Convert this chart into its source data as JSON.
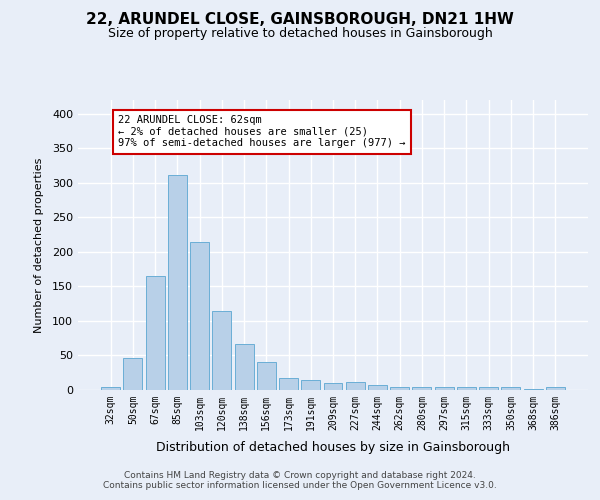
{
  "title": "22, ARUNDEL CLOSE, GAINSBOROUGH, DN21 1HW",
  "subtitle": "Size of property relative to detached houses in Gainsborough",
  "xlabel": "Distribution of detached houses by size in Gainsborough",
  "ylabel": "Number of detached properties",
  "footer_line1": "Contains HM Land Registry data © Crown copyright and database right 2024.",
  "footer_line2": "Contains public sector information licensed under the Open Government Licence v3.0.",
  "annotation_title": "22 ARUNDEL CLOSE: 62sqm",
  "annotation_line2": "← 2% of detached houses are smaller (25)",
  "annotation_line3": "97% of semi-detached houses are larger (977) →",
  "bar_labels": [
    "32sqm",
    "50sqm",
    "67sqm",
    "85sqm",
    "103sqm",
    "120sqm",
    "138sqm",
    "156sqm",
    "173sqm",
    "191sqm",
    "209sqm",
    "227sqm",
    "244sqm",
    "262sqm",
    "280sqm",
    "297sqm",
    "315sqm",
    "333sqm",
    "350sqm",
    "368sqm",
    "386sqm"
  ],
  "bar_values": [
    5,
    47,
    165,
    312,
    215,
    115,
    67,
    40,
    17,
    15,
    10,
    11,
    7,
    5,
    4,
    4,
    4,
    4,
    4,
    1,
    5
  ],
  "bar_color": "#b8d0e8",
  "bar_edge_color": "#6aaed6",
  "annotation_box_edge": "#cc0000",
  "annotation_box_fill": "#ffffff",
  "bg_color": "#e8eef8",
  "plot_bg_color": "#e8eef8",
  "grid_color": "#ffffff",
  "ylim": [
    0,
    420
  ],
  "yticks": [
    0,
    50,
    100,
    150,
    200,
    250,
    300,
    350,
    400
  ]
}
